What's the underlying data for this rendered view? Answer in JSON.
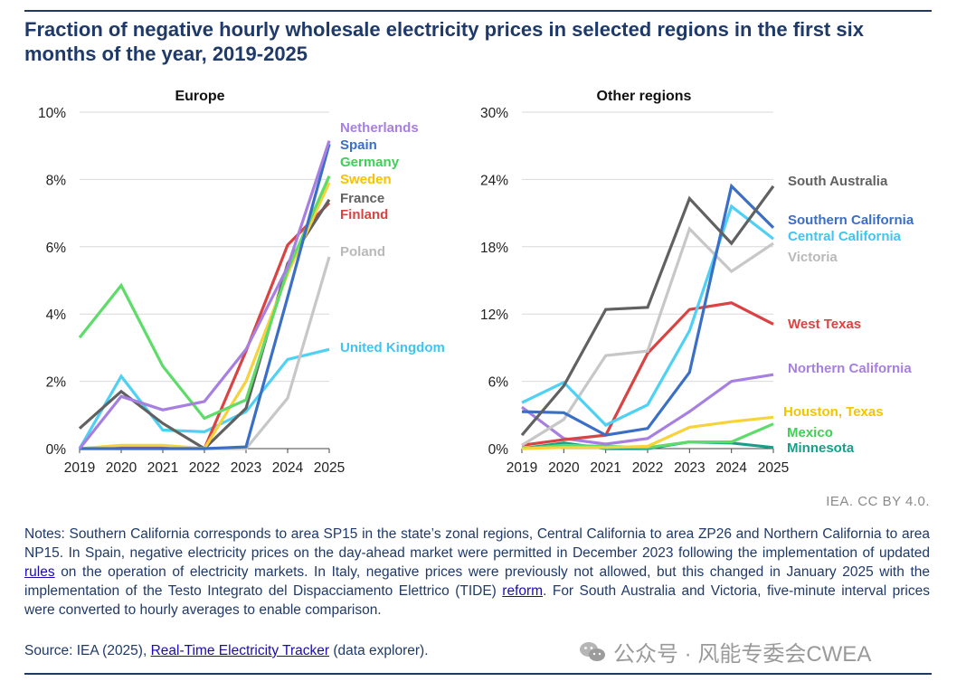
{
  "title": "Fraction of negative hourly wholesale electricity prices in selected regions in the first six months of the year, 2019-2025",
  "attribution": "IEA. CC BY 4.0.",
  "notes": {
    "part1": "Notes: Southern California corresponds to area SP15 in the state’s zonal regions, Central California to area ZP26 and Northern California to area NP15. In Spain, negative electricity prices on the day-ahead market were permitted in December 2023 following the implementation of updated ",
    "link1": "rules",
    "part2": " on the operation of electricity markets. In Italy, negative prices were previously not allowed, but this changed in January 2025 with the implementation of the Testo Integrato del Dispacciamento Elettrico (TIDE) ",
    "link2": "reform",
    "part3": ". For South Australia and Victoria, five-minute interval prices were converted to hourly averages to enable comparison."
  },
  "source": {
    "prefix": "Source: IEA (2025), ",
    "link": "Real-Time Electricity Tracker",
    "suffix": " (data explorer)."
  },
  "watermark": "公众号 · 风能专委会CWEA",
  "chart_data": [
    {
      "type": "line",
      "title": "Europe",
      "x": [
        "2019",
        "2020",
        "2021",
        "2022",
        "2023",
        "2024",
        "2025"
      ],
      "ylim": [
        0,
        10
      ],
      "yticks": [
        0,
        2,
        4,
        6,
        8,
        10
      ],
      "ytick_labels": [
        "0%",
        "2%",
        "4%",
        "6%",
        "8%",
        "10%"
      ],
      "series": [
        {
          "name": "Netherlands",
          "color": "#a77fe0",
          "label_color": "#a77fe0",
          "values": [
            0,
            1.55,
            1.15,
            1.4,
            2.95,
            5.4,
            9.15
          ]
        },
        {
          "name": "Spain",
          "color": "#3b6fc6",
          "label_color": "#3b6fc6",
          "values": [
            0,
            0,
            0,
            0,
            0.05,
            4.5,
            9.05
          ]
        },
        {
          "name": "Germany",
          "color": "#5ddc6a",
          "label_color": "#3fcf57",
          "values": [
            3.3,
            4.85,
            2.45,
            0.9,
            1.45,
            5.3,
            8.1
          ]
        },
        {
          "name": "Sweden",
          "color": "#f7d23a",
          "label_color": "#f4c400",
          "values": [
            0,
            0.1,
            0.1,
            0,
            2.0,
            5.2,
            7.9
          ]
        },
        {
          "name": "France",
          "color": "#616161",
          "label_color": "#616161",
          "values": [
            0.6,
            1.7,
            0.75,
            0,
            1.2,
            5.5,
            7.4
          ]
        },
        {
          "name": "Finland",
          "color": "#d94343",
          "label_color": "#d94343",
          "values": [
            0,
            0.05,
            0.05,
            0,
            2.9,
            6.05,
            7.3
          ]
        },
        {
          "name": "Poland",
          "color": "#c7c7c7",
          "label_color": "#b9b9b9",
          "values": [
            0,
            0,
            0,
            0,
            0,
            1.5,
            5.7
          ]
        },
        {
          "name": "United Kingdom",
          "color": "#4fd0f5",
          "label_color": "#3fc6f0",
          "values": [
            0,
            2.15,
            0.55,
            0.5,
            1.1,
            2.65,
            2.95
          ]
        }
      ]
    },
    {
      "type": "line",
      "title": "Other regions",
      "x": [
        "2019",
        "2020",
        "2021",
        "2022",
        "2023",
        "2024",
        "2025"
      ],
      "ylim": [
        0,
        30
      ],
      "yticks": [
        0,
        6,
        12,
        18,
        24,
        30
      ],
      "ytick_labels": [
        "0%",
        "6%",
        "12%",
        "18%",
        "24%",
        "30%"
      ],
      "series": [
        {
          "name": "South Australia",
          "color": "#616161",
          "label_color": "#616161",
          "values": [
            1.2,
            5.6,
            12.4,
            12.6,
            22.3,
            18.3,
            23.4
          ]
        },
        {
          "name": "Southern California",
          "color": "#3b6fc6",
          "label_color": "#3b6fc6",
          "values": [
            3.3,
            3.2,
            1.2,
            1.8,
            6.8,
            23.4,
            19.7
          ]
        },
        {
          "name": "Central California",
          "color": "#4fd0f5",
          "label_color": "#3fc6f0",
          "values": [
            4.1,
            5.9,
            2.1,
            3.9,
            10.5,
            21.6,
            18.7
          ]
        },
        {
          "name": "Victoria",
          "color": "#c7c7c7",
          "label_color": "#b9b9b9",
          "values": [
            0.3,
            2.6,
            8.3,
            8.7,
            19.6,
            15.8,
            18.3
          ]
        },
        {
          "name": "West Texas",
          "color": "#d94343",
          "label_color": "#d94343",
          "values": [
            0.3,
            0.8,
            1.2,
            8.5,
            12.4,
            13.0,
            11.1
          ]
        },
        {
          "name": "Northern California",
          "color": "#a77fe0",
          "label_color": "#a77fe0",
          "values": [
            3.7,
            0.9,
            0.4,
            0.9,
            3.3,
            6.0,
            6.6
          ]
        },
        {
          "name": "Houston, Texas",
          "color": "#f7d23a",
          "label_color": "#f4c400",
          "values": [
            0,
            0.1,
            0.1,
            0.2,
            1.9,
            2.4,
            2.8
          ]
        },
        {
          "name": "Mexico",
          "color": "#5ddc6a",
          "label_color": "#3fcf57",
          "values": [
            0,
            0.3,
            0.2,
            0.1,
            0.6,
            0.6,
            2.2
          ]
        },
        {
          "name": "Minnesota",
          "color": "#16a08a",
          "label_color": "#16a08a",
          "values": [
            0,
            0.5,
            0,
            0,
            0.6,
            0.5,
            0.1
          ]
        }
      ]
    }
  ]
}
